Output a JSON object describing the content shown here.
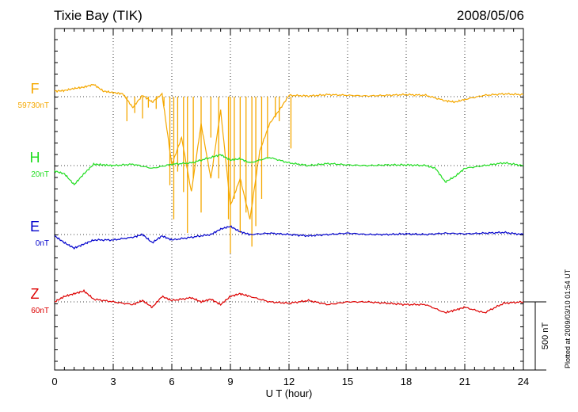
{
  "title": "Tixie Bay (TIK)",
  "date": "2008/05/06",
  "plotted_note": "Plotted at 2009/03/10 01:54 UT",
  "chart_data": {
    "type": "line",
    "xlabel": "U T (hour)",
    "xlim": [
      0,
      24
    ],
    "x_ticks": [
      "0",
      "3",
      "6",
      "9",
      "12",
      "15",
      "18",
      "21",
      "24"
    ],
    "scale_bar_label": "500 nT",
    "series": [
      {
        "name": "F",
        "baseline": "59730nT",
        "color": "#f5a800",
        "x": [
          0,
          0.5,
          1,
          1.5,
          2,
          2.5,
          3,
          3.5,
          4,
          4.5,
          5,
          5.5,
          6,
          6.5,
          7,
          7.5,
          8,
          8.5,
          9,
          9.5,
          10,
          10.5,
          11,
          11.5,
          12,
          13,
          14,
          15,
          16,
          17,
          18,
          19,
          20,
          20.5,
          21,
          22,
          23,
          24
        ],
        "values": [
          40,
          45,
          60,
          70,
          90,
          40,
          30,
          20,
          -80,
          10,
          -40,
          20,
          -500,
          -300,
          -700,
          -200,
          -600,
          -100,
          -800,
          -600,
          -900,
          -400,
          -200,
          -100,
          10,
          5,
          15,
          10,
          5,
          10,
          15,
          10,
          -30,
          -40,
          -20,
          10,
          20,
          15
        ],
        "spikes": [
          [
            3.7,
            -180
          ],
          [
            4.1,
            -120
          ],
          [
            4.5,
            -160
          ],
          [
            4.8,
            -80
          ],
          [
            5.2,
            -90
          ],
          [
            5.6,
            -70
          ],
          [
            5.9,
            -650
          ],
          [
            6.1,
            -900
          ],
          [
            6.3,
            -550
          ],
          [
            6.6,
            -700
          ],
          [
            6.8,
            -1000
          ],
          [
            7.1,
            -600
          ],
          [
            7.5,
            -850
          ],
          [
            8.0,
            -300
          ],
          [
            8.4,
            -600
          ],
          [
            8.9,
            -900
          ],
          [
            9.0,
            -1150
          ],
          [
            9.2,
            -750
          ],
          [
            9.5,
            -1000
          ],
          [
            9.8,
            -850
          ],
          [
            10.1,
            -1100
          ],
          [
            10.3,
            -950
          ],
          [
            10.6,
            -750
          ],
          [
            10.9,
            -450
          ],
          [
            11.3,
            -150
          ],
          [
            11.5,
            -180
          ],
          [
            12.1,
            -380
          ]
        ]
      },
      {
        "name": "H",
        "baseline": "20nT",
        "color": "#22dd22",
        "x": [
          0,
          0.5,
          1,
          1.5,
          2,
          2.5,
          3,
          4,
          5,
          6,
          7,
          8,
          8.5,
          9,
          9.5,
          10,
          11,
          12,
          13,
          14,
          15,
          16,
          17,
          18,
          19,
          19.5,
          20,
          20.5,
          21,
          22,
          23,
          24
        ],
        "values": [
          -40,
          -60,
          -140,
          -60,
          10,
          5,
          0,
          10,
          -20,
          10,
          20,
          60,
          80,
          40,
          50,
          20,
          60,
          20,
          0,
          15,
          5,
          0,
          5,
          5,
          0,
          -20,
          -120,
          -80,
          -20,
          0,
          20,
          0
        ]
      },
      {
        "name": "E",
        "baseline": "0nT",
        "color": "#0000cc",
        "x": [
          0,
          0.5,
          1,
          1.5,
          2,
          3,
          4,
          4.5,
          5,
          5.5,
          6,
          7,
          8,
          8.5,
          9,
          9.5,
          10,
          11,
          12,
          13,
          14,
          15,
          16,
          17,
          18,
          19,
          20,
          21,
          22,
          23,
          24
        ],
        "values": [
          -10,
          -60,
          -100,
          -70,
          -40,
          -40,
          -20,
          0,
          -60,
          -10,
          -40,
          -20,
          0,
          40,
          60,
          20,
          0,
          10,
          0,
          -10,
          0,
          10,
          0,
          0,
          5,
          0,
          10,
          5,
          10,
          15,
          0
        ]
      },
      {
        "name": "Z",
        "baseline": "60nT",
        "color": "#dd0000",
        "x": [
          0,
          0.5,
          1,
          1.5,
          2,
          3,
          4,
          4.5,
          5,
          5.5,
          6,
          7,
          7.5,
          8,
          8.5,
          9,
          9.5,
          10,
          11,
          12,
          13,
          14,
          15,
          16,
          17,
          18,
          19,
          20,
          20.5,
          21,
          22,
          23,
          24
        ],
        "values": [
          0,
          40,
          60,
          80,
          20,
          0,
          -20,
          10,
          -40,
          40,
          10,
          30,
          0,
          20,
          -20,
          40,
          60,
          40,
          0,
          -10,
          10,
          -20,
          0,
          0,
          -10,
          -20,
          -20,
          -80,
          -60,
          -40,
          -80,
          -10,
          0
        ]
      }
    ]
  }
}
